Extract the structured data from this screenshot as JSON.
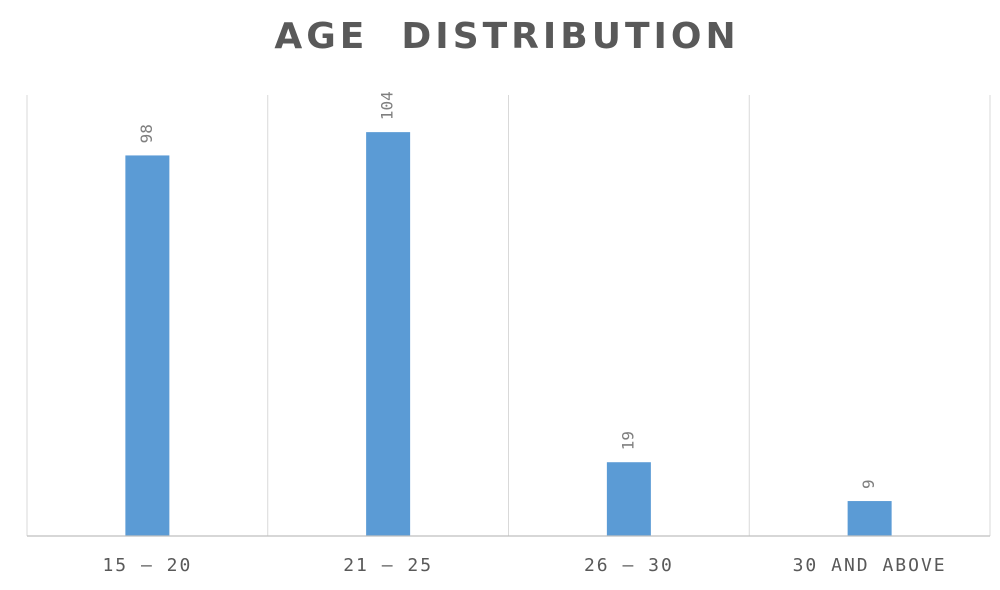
{
  "chart_data": {
    "type": "bar",
    "title": "AGE  DISTRIBUTION",
    "categories": [
      "15 – 20",
      "21 – 25",
      "26 – 30",
      "30 AND ABOVE"
    ],
    "series": [
      {
        "values": [
          98,
          104,
          19,
          9
        ],
        "color": "#5b9bd5"
      }
    ],
    "xlabel": "",
    "ylabel": "",
    "ylim": [
      0,
      120
    ],
    "grid": "vertical category separators",
    "legend": "none",
    "data_labels": "rotated above bars"
  }
}
